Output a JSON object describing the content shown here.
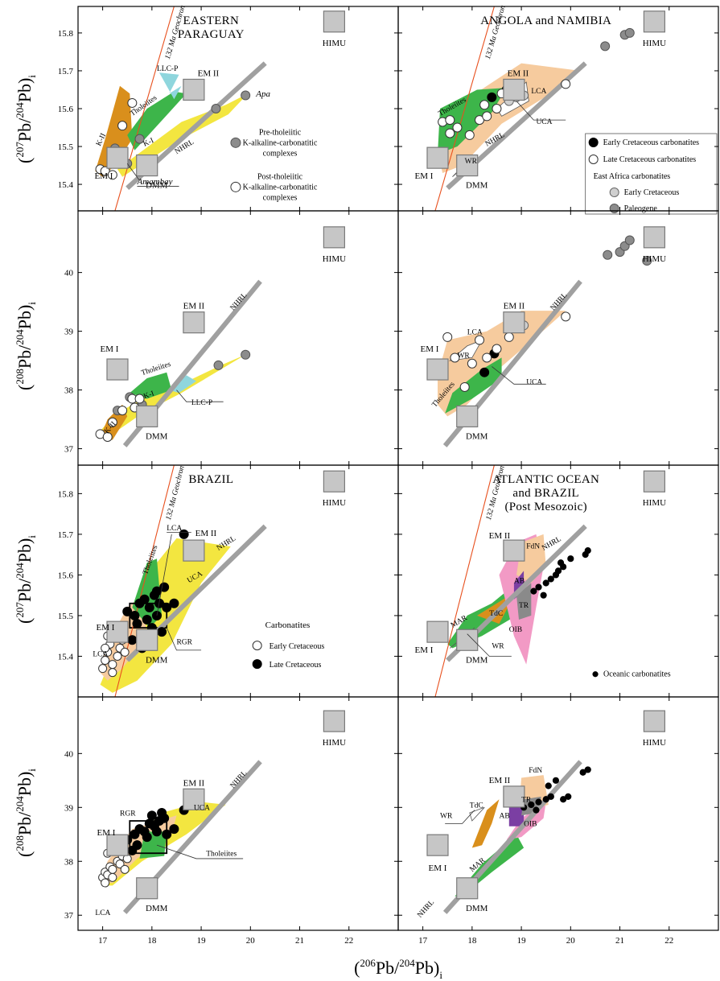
{
  "figure": {
    "x_axis_label": {
      "pre": "(",
      "main": "Pb/",
      "sup1": "206",
      "sup2": "204",
      "post": "Pb)",
      "sub": "i"
    },
    "y_axis_label_207": {
      "open": "(",
      "sup1": "207",
      "mid": "Pb/",
      "sup2": "204",
      "end": "Pb",
      "close": ")",
      "sub": "i"
    },
    "y_axis_label_208": {
      "open": "(",
      "sup1": "208",
      "mid": "Pb/",
      "sup2": "204",
      "end": "Pb",
      "close": ")",
      "sub": "i"
    }
  },
  "chart_data": [
    {
      "id": "eastern-paraguay-207",
      "type": "scatter",
      "title_lines": [
        "EASTERN",
        "PARAGUAY"
      ],
      "x_ticks": [
        17,
        18,
        19,
        20,
        21,
        22
      ],
      "y_ticks": [
        15.4,
        15.5,
        15.6,
        15.7,
        15.8
      ],
      "xlim": [
        16.5,
        23.0
      ],
      "ylim": [
        15.33,
        15.87
      ],
      "geochron_label": "132 Ma Geochron",
      "nhrl_label": "NHRL",
      "endmembers": [
        {
          "name": "HIMU",
          "x": 21.7,
          "y": 15.83
        },
        {
          "name": "EM II",
          "x": 18.85,
          "y": 15.65
        },
        {
          "name": "EM I",
          "x": 17.3,
          "y": 15.47
        },
        {
          "name": "DMM",
          "x": 17.9,
          "y": 15.45
        }
      ],
      "fields": [
        {
          "name": "K-II",
          "color": "#d98f1c"
        },
        {
          "name": "Tholeiites",
          "color": "#3db54a"
        },
        {
          "name": "K-I",
          "color": "#f3e640"
        },
        {
          "name": "LLC-P",
          "color": "#8fd6dd"
        }
      ],
      "labels": [
        "Apa",
        "Amambay"
      ],
      "legend": [
        {
          "name": "Pre-tholeiitic",
          "line2": "K-alkaline-carbonatitic",
          "line3": "complexes",
          "marker": "gray-filled"
        },
        {
          "name": "Post-tholeiitic",
          "line2": "K-alkaline-carbonatitic",
          "line3": "complexes",
          "marker": "open"
        }
      ],
      "series": [
        {
          "name": "Pre-tholeiitic",
          "x": [
            17.25,
            17.75,
            17.5,
            19.3,
            19.9
          ],
          "y": [
            15.495,
            15.52,
            15.455,
            15.6,
            15.635
          ]
        },
        {
          "name": "Post-tholeiitic",
          "x": [
            16.95,
            17.05,
            17.2,
            17.4,
            17.6
          ],
          "y": [
            15.44,
            15.435,
            15.425,
            15.555,
            15.615
          ]
        }
      ]
    },
    {
      "id": "angola-namibia-207",
      "type": "scatter",
      "title_lines": [
        "ANGOLA and NAMIBIA"
      ],
      "x_ticks": [
        17,
        18,
        19,
        20,
        21,
        22
      ],
      "y_ticks": [
        15.4,
        15.5,
        15.6,
        15.7,
        15.8
      ],
      "xlim": [
        16.5,
        23.0
      ],
      "ylim": [
        15.33,
        15.87
      ],
      "geochron_label": "132 Ma Geochron",
      "nhrl_label": "NHRL",
      "endmembers": [
        {
          "name": "HIMU",
          "x": 21.7,
          "y": 15.83
        },
        {
          "name": "EM II",
          "x": 18.85,
          "y": 15.65
        },
        {
          "name": "EM I",
          "x": 17.3,
          "y": 15.47
        },
        {
          "name": "DMM",
          "x": 17.9,
          "y": 15.45
        }
      ],
      "fields": [
        {
          "name": "LCA",
          "color": "#f6cb9e"
        },
        {
          "name": "Tholeiites",
          "color": "#3db54a"
        },
        {
          "name": "UCA",
          "color": "#ffffff"
        },
        {
          "name": "WR",
          "color": "#ffffff"
        }
      ],
      "legend_title": "East Africa carbonatites",
      "legend": [
        {
          "name": "Early Cretaceous carbonatites",
          "marker": "black"
        },
        {
          "name": "Late Cretaceous carbonatites",
          "marker": "open"
        },
        {
          "name": "Early Cretaceous",
          "marker": "light-gray"
        },
        {
          "name": "Paleogene",
          "marker": "gray-filled"
        }
      ],
      "series": [
        {
          "name": "Early Cretaceous carbonatites",
          "x": [
            18.4,
            18.7
          ],
          "y": [
            15.63,
            15.65
          ]
        },
        {
          "name": "Late Cretaceous carbonatites",
          "x": [
            17.4,
            17.55,
            17.7,
            17.95,
            18.15,
            18.3,
            18.5,
            18.6,
            18.25,
            17.55,
            19.9
          ],
          "y": [
            15.565,
            15.57,
            15.55,
            15.53,
            15.57,
            15.58,
            15.6,
            15.64,
            15.61,
            15.535,
            15.665
          ]
        },
        {
          "name": "Early Cretaceous",
          "x": [
            18.9,
            19.05,
            18.75
          ],
          "y": [
            15.63,
            15.635,
            15.62
          ]
        },
        {
          "name": "Paleogene",
          "x": [
            20.7,
            21.1,
            21.2,
            21.6
          ],
          "y": [
            15.765,
            15.795,
            15.8,
            15.82
          ]
        }
      ]
    },
    {
      "id": "eastern-paraguay-208",
      "type": "scatter",
      "x_ticks": [
        17,
        18,
        19,
        20,
        21,
        22
      ],
      "y_ticks": [
        37,
        38,
        39,
        40
      ],
      "xlim": [
        16.5,
        23.0
      ],
      "ylim": [
        36.72,
        41.05
      ],
      "nhrl_label": "NHRL",
      "endmembers": [
        {
          "name": "HIMU",
          "x": 21.7,
          "y": 40.6
        },
        {
          "name": "EM II",
          "x": 18.85,
          "y": 39.15
        },
        {
          "name": "EM I",
          "x": 17.3,
          "y": 38.35
        },
        {
          "name": "DMM",
          "x": 17.9,
          "y": 37.55
        }
      ],
      "fields": [
        {
          "name": "Tholeiites",
          "color": "#3db54a"
        },
        {
          "name": "K-I",
          "color": "#f3e640"
        },
        {
          "name": "K-II",
          "color": "#d98f1c"
        },
        {
          "name": "LLC-P",
          "color": "#8fd6dd"
        }
      ],
      "series": [
        {
          "name": "Pre-tholeiitic",
          "x": [
            17.55,
            17.3,
            17.8,
            19.35,
            19.9
          ],
          "y": [
            37.88,
            37.65,
            37.75,
            38.42,
            38.6
          ]
        },
        {
          "name": "Post-tholeiitic",
          "x": [
            16.95,
            17.1,
            17.2,
            17.4,
            17.6,
            17.65,
            17.75
          ],
          "y": [
            37.25,
            37.2,
            37.45,
            37.65,
            37.85,
            37.7,
            37.85
          ]
        }
      ]
    },
    {
      "id": "angola-namibia-208",
      "type": "scatter",
      "x_ticks": [
        17,
        18,
        19,
        20,
        21,
        22
      ],
      "y_ticks": [
        37,
        38,
        39,
        40
      ],
      "xlim": [
        16.5,
        23.0
      ],
      "ylim": [
        36.72,
        41.05
      ],
      "nhrl_label": "NHRL",
      "endmembers": [
        {
          "name": "HIMU",
          "x": 21.7,
          "y": 40.6
        },
        {
          "name": "EM II",
          "x": 18.85,
          "y": 39.15
        },
        {
          "name": "EM I",
          "x": 17.3,
          "y": 38.35
        },
        {
          "name": "DMM",
          "x": 17.9,
          "y": 37.55
        }
      ],
      "fields": [
        {
          "name": "LCA",
          "color": "#f6cb9e"
        },
        {
          "name": "WR",
          "color": "#ffffff"
        },
        {
          "name": "Tholeiites",
          "color": "#3db54a"
        },
        {
          "name": "UCA",
          "color": "#ffffff"
        }
      ],
      "series": [
        {
          "name": "Early Cretaceous carbonatites",
          "x": [
            18.25,
            18.45
          ],
          "y": [
            38.3,
            38.62
          ]
        },
        {
          "name": "Late Cretaceous carbonatites",
          "x": [
            17.5,
            17.65,
            18.0,
            18.15,
            18.3,
            18.5,
            18.75,
            19.9,
            17.35,
            17.85
          ],
          "y": [
            38.9,
            38.55,
            38.45,
            38.85,
            38.55,
            38.7,
            38.9,
            39.25,
            38.45,
            38.05
          ]
        },
        {
          "name": "Early Cretaceous",
          "x": [
            18.95,
            19.05
          ],
          "y": [
            39.15,
            39.1
          ]
        },
        {
          "name": "Paleogene",
          "x": [
            20.75,
            21.0,
            21.1,
            21.2,
            21.55
          ],
          "y": [
            40.3,
            40.35,
            40.45,
            40.55,
            40.2
          ]
        }
      ]
    },
    {
      "id": "brazil-207",
      "type": "scatter",
      "title_lines": [
        "BRAZIL"
      ],
      "x_ticks": [
        17,
        18,
        19,
        20,
        21,
        22
      ],
      "y_ticks": [
        15.4,
        15.5,
        15.6,
        15.7,
        15.8
      ],
      "xlim": [
        16.5,
        23.0
      ],
      "ylim": [
        15.3,
        15.87
      ],
      "geochron_label": "132 Ma Geochron",
      "nhrl_label": "NHRL",
      "endmembers": [
        {
          "name": "HIMU",
          "x": 21.7,
          "y": 15.83
        },
        {
          "name": "EM II",
          "x": 18.85,
          "y": 15.66
        },
        {
          "name": "EM I",
          "x": 17.3,
          "y": 15.46
        },
        {
          "name": "DMM",
          "x": 17.9,
          "y": 15.44
        }
      ],
      "fields": [
        {
          "name": "LCA",
          "color": "#f6cb9e"
        },
        {
          "name": "Tholeiites",
          "color": "#3db54a"
        },
        {
          "name": "UCA",
          "color": "#f3e640"
        },
        {
          "name": "RGR",
          "color": "none"
        }
      ],
      "legend_title": "Carbonatites",
      "legend": [
        {
          "name": "Early Cretaceous",
          "marker": "open"
        },
        {
          "name": "Late Cretaceous",
          "marker": "black"
        }
      ],
      "series": [
        {
          "name": "Early Cretaceous",
          "x": [
            17.0,
            17.05,
            17.1,
            17.15,
            17.2,
            17.3,
            17.35,
            17.4,
            17.1,
            17.25,
            17.45,
            17.05,
            17.2
          ],
          "y": [
            15.37,
            15.39,
            15.41,
            15.43,
            15.38,
            15.4,
            15.42,
            15.44,
            15.45,
            15.46,
            15.41,
            15.42,
            15.36
          ]
        },
        {
          "name": "Late Cretaceous",
          "x": [
            17.5,
            17.65,
            17.75,
            17.85,
            17.95,
            18.05,
            18.15,
            18.25,
            17.7,
            17.9,
            18.1,
            18.3,
            17.6,
            18.0,
            18.2,
            18.45,
            18.65,
            17.8,
            18.1
          ],
          "y": [
            15.51,
            15.5,
            15.53,
            15.54,
            15.52,
            15.55,
            15.53,
            15.57,
            15.48,
            15.49,
            15.5,
            15.52,
            15.44,
            15.47,
            15.46,
            15.53,
            15.7,
            15.42,
            15.56
          ]
        }
      ]
    },
    {
      "id": "atlantic-207",
      "type": "scatter",
      "title_lines": [
        "ATLANTIC OCEAN",
        "and BRAZIL",
        "(Post Mesozoic)"
      ],
      "x_ticks": [
        17,
        18,
        19,
        20,
        21,
        22
      ],
      "y_ticks": [
        15.4,
        15.5,
        15.6,
        15.7,
        15.8
      ],
      "xlim": [
        16.5,
        23.0
      ],
      "ylim": [
        15.3,
        15.87
      ],
      "geochron_label": "132 Ma Geochron",
      "nhrl_label": "NHRL",
      "endmembers": [
        {
          "name": "HIMU",
          "x": 21.7,
          "y": 15.83
        },
        {
          "name": "EM II",
          "x": 18.85,
          "y": 15.66
        },
        {
          "name": "EM I",
          "x": 17.3,
          "y": 15.46
        },
        {
          "name": "DMM",
          "x": 17.9,
          "y": 15.44
        }
      ],
      "fields": [
        {
          "name": "MAR",
          "color": "#3db54a"
        },
        {
          "name": "TdC",
          "color": "#d98f1c"
        },
        {
          "name": "FdN",
          "color": "#f6cb9e"
        },
        {
          "name": "AB",
          "color": "#7b3fa3"
        },
        {
          "name": "TR",
          "color": "#8a8a8a"
        },
        {
          "name": "OIB",
          "color": "#f29ac5"
        },
        {
          "name": "WR",
          "color": "#ffffff"
        }
      ],
      "legend": [
        {
          "name": "Oceanic carbonatites",
          "marker": "black-small"
        }
      ],
      "series": [
        {
          "name": "Oceanic carbonatites",
          "x": [
            19.25,
            19.35,
            19.5,
            19.6,
            19.75,
            19.8,
            19.85,
            20.0,
            20.3,
            20.35,
            19.45,
            19.7
          ],
          "y": [
            15.56,
            15.57,
            15.58,
            15.59,
            15.61,
            15.63,
            15.62,
            15.64,
            15.65,
            15.66,
            15.55,
            15.6
          ]
        }
      ]
    },
    {
      "id": "brazil-208",
      "type": "scatter",
      "x_ticks": [
        17,
        18,
        19,
        20,
        21,
        22
      ],
      "y_ticks": [
        37,
        38,
        39,
        40
      ],
      "xlim": [
        16.5,
        23.0
      ],
      "ylim": [
        36.72,
        41.05
      ],
      "nhrl_label": "NHRL",
      "endmembers": [
        {
          "name": "HIMU",
          "x": 21.7,
          "y": 40.6
        },
        {
          "name": "EM II",
          "x": 18.85,
          "y": 39.15
        },
        {
          "name": "EM I",
          "x": 17.3,
          "y": 38.3
        },
        {
          "name": "DMM",
          "x": 17.9,
          "y": 37.5
        }
      ],
      "fields": [
        {
          "name": "UCA",
          "color": "#f3e640"
        },
        {
          "name": "LCA",
          "color": "#f6cb9e"
        },
        {
          "name": "Tholeiites",
          "color": "#3db54a"
        },
        {
          "name": "RGR",
          "color": "none"
        }
      ],
      "series": [
        {
          "name": "Early Cretaceous",
          "x": [
            17.0,
            17.05,
            17.1,
            17.15,
            17.2,
            17.3,
            17.35,
            17.4,
            17.1,
            17.25,
            17.45,
            17.05,
            17.2,
            17.5
          ],
          "y": [
            37.7,
            37.8,
            37.75,
            37.9,
            37.85,
            38.0,
            37.95,
            38.1,
            38.15,
            38.2,
            37.85,
            37.6,
            37.7,
            38.05
          ]
        },
        {
          "name": "Late Cretaceous",
          "x": [
            17.5,
            17.65,
            17.75,
            17.85,
            17.95,
            18.05,
            18.15,
            18.25,
            17.7,
            17.9,
            18.1,
            18.3,
            17.6,
            18.0,
            18.2,
            18.45,
            18.65
          ],
          "y": [
            38.4,
            38.5,
            38.6,
            38.55,
            38.7,
            38.65,
            38.75,
            38.8,
            38.3,
            38.45,
            38.55,
            38.5,
            38.2,
            38.85,
            38.9,
            38.6,
            38.95
          ]
        }
      ]
    },
    {
      "id": "atlantic-208",
      "type": "scatter",
      "x_ticks": [
        17,
        18,
        19,
        20,
        21,
        22
      ],
      "y_ticks": [
        37,
        38,
        39,
        40
      ],
      "xlim": [
        16.5,
        23.0
      ],
      "ylim": [
        36.72,
        41.05
      ],
      "nhrl_label": "NHRL",
      "endmembers": [
        {
          "name": "HIMU",
          "x": 21.7,
          "y": 40.6
        },
        {
          "name": "EM II",
          "x": 18.85,
          "y": 39.2
        },
        {
          "name": "EM I",
          "x": 17.3,
          "y": 38.3
        },
        {
          "name": "DMM",
          "x": 17.9,
          "y": 37.5
        }
      ],
      "fields": [
        {
          "name": "MAR",
          "color": "#3db54a"
        },
        {
          "name": "TdC",
          "color": "#d98f1c"
        },
        {
          "name": "FdN",
          "color": "#f6cb9e"
        },
        {
          "name": "AB",
          "color": "#7b3fa3"
        },
        {
          "name": "TR",
          "color": "#8a8a8a"
        },
        {
          "name": "OIB",
          "color": "#f29ac5"
        },
        {
          "name": "WR",
          "color": "#ffffff"
        }
      ],
      "series": [
        {
          "name": "Oceanic carbonatites",
          "x": [
            19.05,
            19.2,
            19.35,
            19.5,
            19.6,
            19.7,
            19.85,
            19.95,
            20.25,
            20.35,
            19.55,
            19.3
          ],
          "y": [
            39.0,
            39.05,
            39.1,
            39.15,
            39.2,
            39.5,
            39.15,
            39.2,
            39.65,
            39.7,
            39.4,
            38.95
          ]
        }
      ]
    }
  ]
}
